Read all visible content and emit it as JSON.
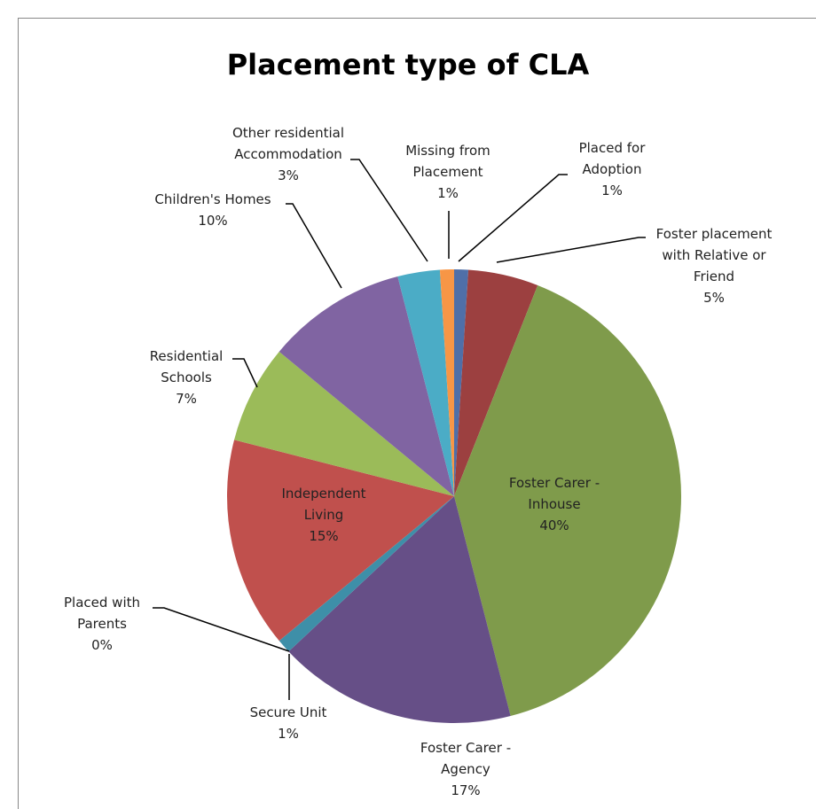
{
  "chart_data": {
    "type": "pie",
    "title": "Placement type of CLA",
    "categories": [
      "Placed for Adoption",
      "Foster placement with Relative or Friend",
      "Foster Carer - Inhouse",
      "Foster Carer - Agency",
      "Secure Unit",
      "Placed with Parents",
      "Independent Living",
      "Residential Schools",
      "Children's Homes",
      "Other residential Accommodation",
      "Missing from Placement"
    ],
    "values": [
      1,
      5,
      40,
      17,
      1,
      0,
      15,
      7,
      10,
      3,
      1
    ],
    "value_labels": [
      "1%",
      "5%",
      "40%",
      "17%",
      "1%",
      "0%",
      "15%",
      "7%",
      "10%",
      "3%",
      "1%"
    ],
    "colors": [
      "#4f6fa8",
      "#9c4040",
      "#7f9b4b",
      "#664f87",
      "#3e8fa8",
      "#e08a3a",
      "#c0504d",
      "#9bbb59",
      "#8064a2",
      "#4bacc6",
      "#f79646"
    ]
  }
}
